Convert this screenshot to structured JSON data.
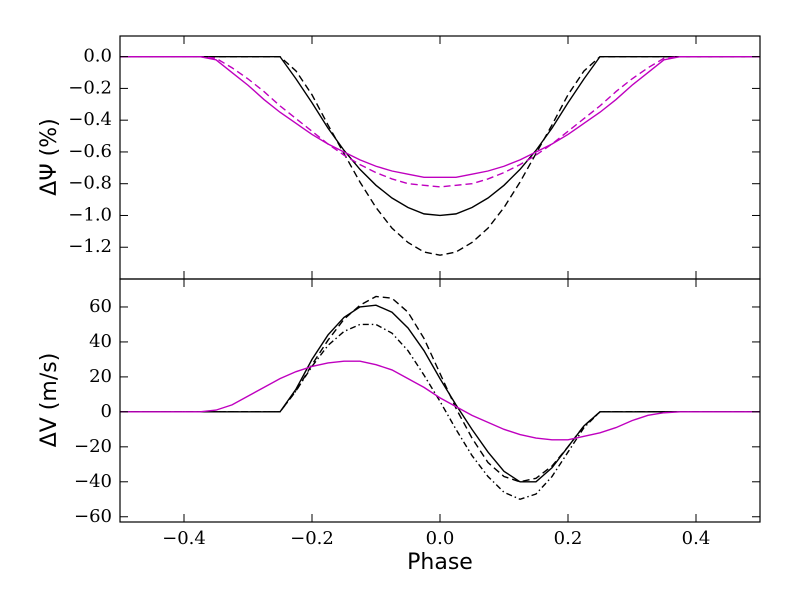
{
  "chart_data": [
    {
      "type": "line",
      "ylabel": "ΔΨ (%)",
      "xlim": [
        -0.5,
        0.5
      ],
      "ylim": [
        -1.4,
        0.13
      ],
      "yticks": [
        {
          "value": 0,
          "label": "0.0"
        },
        {
          "value": -0.2,
          "label": "−0.2"
        },
        {
          "value": -0.4,
          "label": "−0.4"
        },
        {
          "value": -0.6,
          "label": "−0.6"
        },
        {
          "value": -0.8,
          "label": "−0.8"
        },
        {
          "value": -1.0,
          "label": "−1.0"
        },
        {
          "value": -1.2,
          "label": "−1.2"
        }
      ],
      "x": [
        -0.5,
        -0.475,
        -0.45,
        -0.425,
        -0.4,
        -0.375,
        -0.35,
        -0.325,
        -0.3,
        -0.275,
        -0.25,
        -0.225,
        -0.2,
        -0.175,
        -0.15,
        -0.125,
        -0.1,
        -0.075,
        -0.05,
        -0.025,
        0,
        0.025,
        0.05,
        0.075,
        0.1,
        0.125,
        0.15,
        0.175,
        0.2,
        0.225,
        0.25,
        0.275,
        0.3,
        0.325,
        0.35,
        0.375,
        0.4,
        0.425,
        0.45,
        0.475,
        0.5
      ],
      "series": [
        {
          "color": "#000000",
          "style": "solid",
          "values": [
            0,
            0,
            0,
            0,
            0,
            0,
            0,
            0,
            0,
            0,
            0,
            -0.14,
            -0.29,
            -0.45,
            -0.59,
            -0.71,
            -0.81,
            -0.89,
            -0.95,
            -0.99,
            -1.0,
            -0.99,
            -0.95,
            -0.89,
            -0.81,
            -0.71,
            -0.59,
            -0.45,
            -0.29,
            -0.14,
            0,
            0,
            0,
            0,
            0,
            0,
            0,
            0,
            0,
            0,
            0
          ]
        },
        {
          "color": "#000000",
          "style": "dashed",
          "values": [
            0,
            0,
            0,
            0,
            0,
            0,
            0,
            0,
            0,
            0,
            0,
            -0.09,
            -0.24,
            -0.43,
            -0.61,
            -0.79,
            -0.95,
            -1.08,
            -1.17,
            -1.23,
            -1.25,
            -1.23,
            -1.17,
            -1.08,
            -0.95,
            -0.79,
            -0.61,
            -0.43,
            -0.24,
            -0.09,
            0,
            0,
            0,
            0,
            0,
            0,
            0,
            0,
            0,
            0,
            0
          ]
        },
        {
          "color": "#bf00bf",
          "style": "solid",
          "values": [
            0,
            0,
            0,
            0,
            0,
            0,
            -0.02,
            -0.1,
            -0.18,
            -0.27,
            -0.35,
            -0.42,
            -0.49,
            -0.55,
            -0.6,
            -0.65,
            -0.69,
            -0.72,
            -0.74,
            -0.76,
            -0.76,
            -0.76,
            -0.74,
            -0.72,
            -0.69,
            -0.65,
            -0.6,
            -0.55,
            -0.49,
            -0.42,
            -0.35,
            -0.27,
            -0.18,
            -0.1,
            -0.02,
            0,
            0,
            0,
            0,
            0,
            0
          ]
        },
        {
          "color": "#bf00bf",
          "style": "dashed",
          "values": [
            0,
            0,
            0,
            0,
            0,
            0,
            -0.01,
            -0.07,
            -0.14,
            -0.22,
            -0.31,
            -0.39,
            -0.47,
            -0.55,
            -0.62,
            -0.68,
            -0.73,
            -0.77,
            -0.8,
            -0.81,
            -0.82,
            -0.81,
            -0.8,
            -0.77,
            -0.73,
            -0.68,
            -0.62,
            -0.55,
            -0.47,
            -0.39,
            -0.31,
            -0.22,
            -0.14,
            -0.07,
            -0.01,
            0,
            0,
            0,
            0,
            0,
            0
          ]
        }
      ]
    },
    {
      "type": "line",
      "ylabel": "ΔV (m/s)",
      "xlabel": "Phase",
      "xlim": [
        -0.5,
        0.5
      ],
      "ylim": [
        -63,
        76
      ],
      "xticks": [
        {
          "value": -0.4,
          "label": "−0.4"
        },
        {
          "value": -0.2,
          "label": "−0.2"
        },
        {
          "value": 0,
          "label": "0.0"
        },
        {
          "value": 0.2,
          "label": "0.2"
        },
        {
          "value": 0.4,
          "label": "0.4"
        }
      ],
      "yticks": [
        {
          "value": -60,
          "label": "−60"
        },
        {
          "value": -40,
          "label": "−40"
        },
        {
          "value": -20,
          "label": "−20"
        },
        0,
        20,
        40,
        60
      ],
      "x": [
        -0.5,
        -0.475,
        -0.45,
        -0.425,
        -0.4,
        -0.375,
        -0.35,
        -0.325,
        -0.3,
        -0.275,
        -0.25,
        -0.225,
        -0.2,
        -0.175,
        -0.15,
        -0.125,
        -0.1,
        -0.075,
        -0.05,
        -0.025,
        0,
        0.025,
        0.05,
        0.075,
        0.1,
        0.125,
        0.15,
        0.175,
        0.2,
        0.225,
        0.25,
        0.275,
        0.3,
        0.325,
        0.35,
        0.375,
        0.4,
        0.425,
        0.45,
        0.475,
        0.5
      ],
      "series": [
        {
          "color": "#000000",
          "style": "solid",
          "values": [
            0,
            0,
            0,
            0,
            0,
            0,
            0,
            0,
            0,
            0,
            0,
            13,
            30,
            44,
            54,
            60,
            61,
            57,
            48,
            35,
            19,
            4,
            -10,
            -23,
            -34,
            -40,
            -40,
            -32,
            -20,
            -8,
            0,
            0,
            0,
            0,
            0,
            0,
            0,
            0,
            0,
            0,
            0
          ]
        },
        {
          "color": "#000000",
          "style": "dashed",
          "values": [
            0,
            0,
            0,
            0,
            0,
            0,
            0,
            0,
            0,
            0,
            0,
            12,
            27,
            41,
            53,
            61,
            66,
            65,
            57,
            42,
            22,
            2,
            -15,
            -29,
            -37,
            -40,
            -38,
            -31,
            -20,
            -8,
            0,
            0,
            0,
            0,
            0,
            0,
            0,
            0,
            0,
            0,
            0
          ]
        },
        {
          "color": "#000000",
          "style": "dashdot",
          "values": [
            0,
            0,
            0,
            0,
            0,
            0,
            0,
            0,
            0,
            0,
            0,
            12,
            26,
            38,
            46,
            50,
            50,
            45,
            35,
            21,
            6,
            -10,
            -25,
            -37,
            -46,
            -50,
            -47,
            -37,
            -23,
            -9,
            0,
            0,
            0,
            0,
            0,
            0,
            0,
            0,
            0,
            0,
            0
          ]
        },
        {
          "color": "#bf00bf",
          "style": "solid",
          "values": [
            0,
            0,
            0,
            0,
            0,
            0,
            1,
            4,
            9,
            14,
            19,
            23,
            26,
            28,
            29,
            29,
            27,
            24,
            19,
            14,
            8,
            3,
            -2,
            -6,
            -10,
            -13,
            -15,
            -16,
            -16,
            -14,
            -12,
            -9,
            -5,
            -2,
            -0.5,
            0,
            0,
            0,
            0,
            0,
            0
          ]
        }
      ]
    }
  ]
}
